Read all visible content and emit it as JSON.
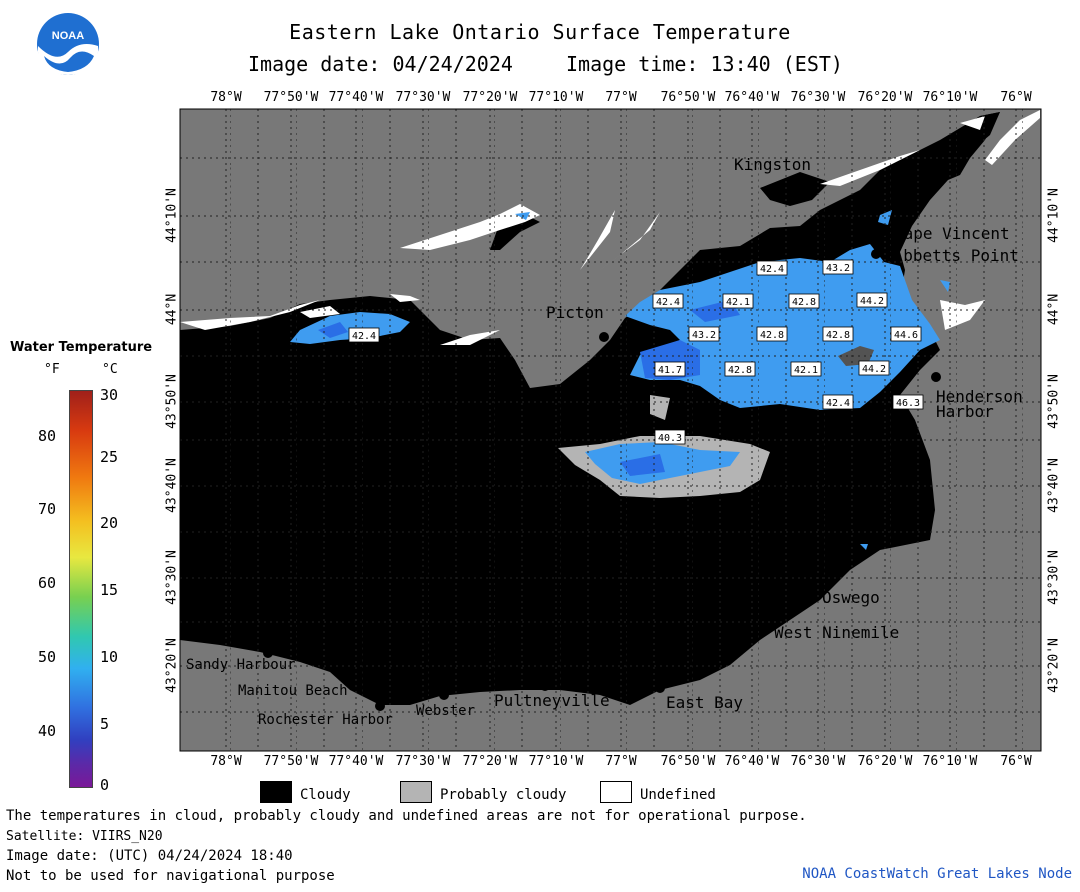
{
  "header": {
    "title": "Eastern Lake Ontario Surface Temperature",
    "image_date": "Image date: 04/24/2024",
    "image_time": "Image time: 13:40 (EST)",
    "logo_text": "NOAA"
  },
  "legend": {
    "title": "Water Temperature",
    "unit_f": "°F",
    "unit_c": "°C",
    "fahrenheit_ticks": [
      "80",
      "70",
      "60",
      "50",
      "40"
    ],
    "celsius_ticks": [
      "30",
      "25",
      "20",
      "15",
      "10",
      "5",
      "0"
    ]
  },
  "axes": {
    "longitude_labels": [
      "78°W",
      "77°50'W",
      "77°40'W",
      "77°30'W",
      "77°20'W",
      "77°10'W",
      "77°W",
      "76°50'W",
      "76°40'W",
      "76°30'W",
      "76°20'W",
      "76°10'W",
      "76°W"
    ],
    "latitude_labels": [
      "44°10'N",
      "44°N",
      "43°50'N",
      "43°40'N",
      "43°30'N",
      "43°20'N"
    ]
  },
  "places": [
    {
      "name": "Kingston"
    },
    {
      "name": "Cape Vincent"
    },
    {
      "name": "Tibbetts Point"
    },
    {
      "name": "Picton"
    },
    {
      "name": "Henderson"
    },
    {
      "name": "Harbor"
    },
    {
      "name": "Oswego"
    },
    {
      "name": "West Ninemile"
    },
    {
      "name": "Sandy Harbour"
    },
    {
      "name": "Manitou Beach"
    },
    {
      "name": "Rochester Harbor"
    },
    {
      "name": "Webster"
    },
    {
      "name": "Pultneyville"
    },
    {
      "name": "East Bay"
    }
  ],
  "temperature_labels": [
    "42.4",
    "43.2",
    "42.4",
    "42.1",
    "42.8",
    "44.2",
    "42.4",
    "43.2",
    "42.8",
    "42.8",
    "44.6",
    "41.7",
    "42.8",
    "42.1",
    "44.2",
    "42.4",
    "46.3",
    "40.3"
  ],
  "colors": {
    "land": "#787878",
    "cloudy": "#000000",
    "probably_cloudy": "#b4b4b4",
    "undefined": "#ffffff",
    "water_warm": "#3f9cf0",
    "water_cool": "#2a6ee6",
    "credit": "#1f56c4"
  },
  "key": {
    "cloudy": "Cloudy",
    "probably_cloudy": "Probably cloudy",
    "undefined": "Undefined"
  },
  "footer": {
    "disclaimer": "The temperatures in cloud, probably cloudy and undefined areas are not for operational purpose.",
    "satellite": "Satellite: VIIRS_N20",
    "utc_date": "Image date: (UTC) 04/24/2024  18:40",
    "navigation": "Not to be used for navigational purpose",
    "credit": "NOAA CoastWatch Great Lakes Node"
  }
}
